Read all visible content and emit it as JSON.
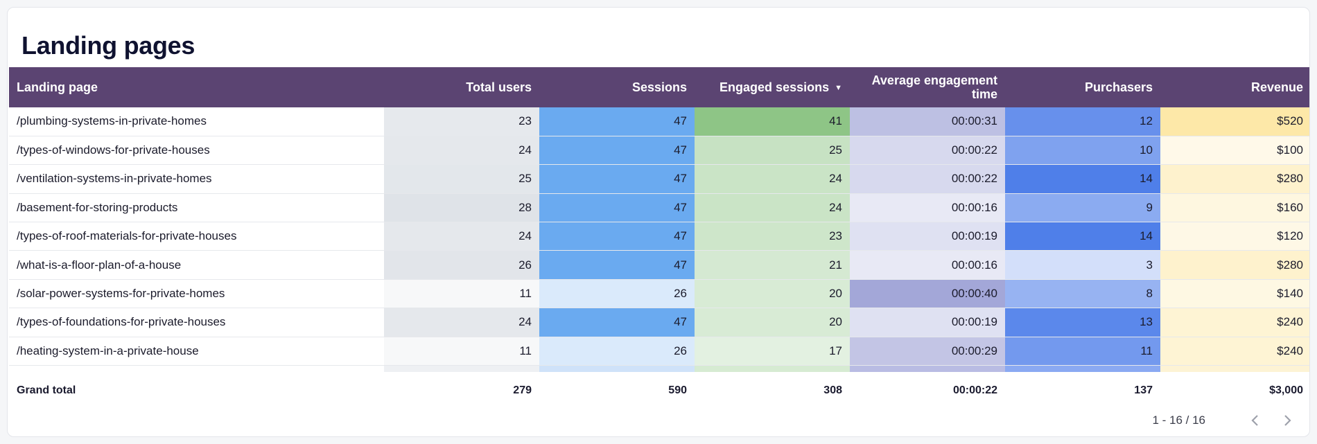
{
  "title": "Landing pages",
  "columns": [
    {
      "label": "Landing page"
    },
    {
      "label": "Total users"
    },
    {
      "label": "Sessions"
    },
    {
      "label": "Engaged sessions"
    },
    {
      "label": "Average engagement time"
    },
    {
      "label": "Purchasers"
    },
    {
      "label": "Revenue"
    }
  ],
  "rows": [
    {
      "page": "/plumbing-systems-in-private-homes",
      "users": "23",
      "sessions": "47",
      "engaged": "41",
      "avg_time": "00:00:31",
      "purchasers": "12",
      "revenue": "$520"
    },
    {
      "page": "/types-of-windows-for-private-houses",
      "users": "24",
      "sessions": "47",
      "engaged": "25",
      "avg_time": "00:00:22",
      "purchasers": "10",
      "revenue": "$100"
    },
    {
      "page": "/ventilation-systems-in-private-homes",
      "users": "25",
      "sessions": "47",
      "engaged": "24",
      "avg_time": "00:00:22",
      "purchasers": "14",
      "revenue": "$280"
    },
    {
      "page": "/basement-for-storing-products",
      "users": "28",
      "sessions": "47",
      "engaged": "24",
      "avg_time": "00:00:16",
      "purchasers": "9",
      "revenue": "$160"
    },
    {
      "page": "/types-of-roof-materials-for-private-houses",
      "users": "24",
      "sessions": "47",
      "engaged": "23",
      "avg_time": "00:00:19",
      "purchasers": "14",
      "revenue": "$120"
    },
    {
      "page": "/what-is-a-floor-plan-of-a-house",
      "users": "26",
      "sessions": "47",
      "engaged": "21",
      "avg_time": "00:00:16",
      "purchasers": "3",
      "revenue": "$280"
    },
    {
      "page": "/solar-power-systems-for-private-homes",
      "users": "11",
      "sessions": "26",
      "engaged": "20",
      "avg_time": "00:00:40",
      "purchasers": "8",
      "revenue": "$140"
    },
    {
      "page": "/types-of-foundations-for-private-houses",
      "users": "24",
      "sessions": "47",
      "engaged": "20",
      "avg_time": "00:00:19",
      "purchasers": "13",
      "revenue": "$240"
    },
    {
      "page": "/heating-system-in-a-private-house",
      "users": "11",
      "sessions": "26",
      "engaged": "17",
      "avg_time": "00:00:29",
      "purchasers": "11",
      "revenue": "$240"
    }
  ],
  "grand_total": {
    "label": "Grand total",
    "users": "279",
    "sessions": "590",
    "engaged": "308",
    "avg_time": "00:00:22",
    "purchasers": "137",
    "revenue": "$3,000"
  },
  "pagination": {
    "range": "1 - 16 / 16"
  },
  "sort_indicator": "▼",
  "colors": {
    "header": "#5b4472",
    "users": "#dfe3e8",
    "sessions": "#6aaaf0",
    "engaged": "#8ec586",
    "avg_time": "#a3a7d8",
    "purchasers": "#4f7fe9",
    "revenue": "#fde8a8"
  }
}
